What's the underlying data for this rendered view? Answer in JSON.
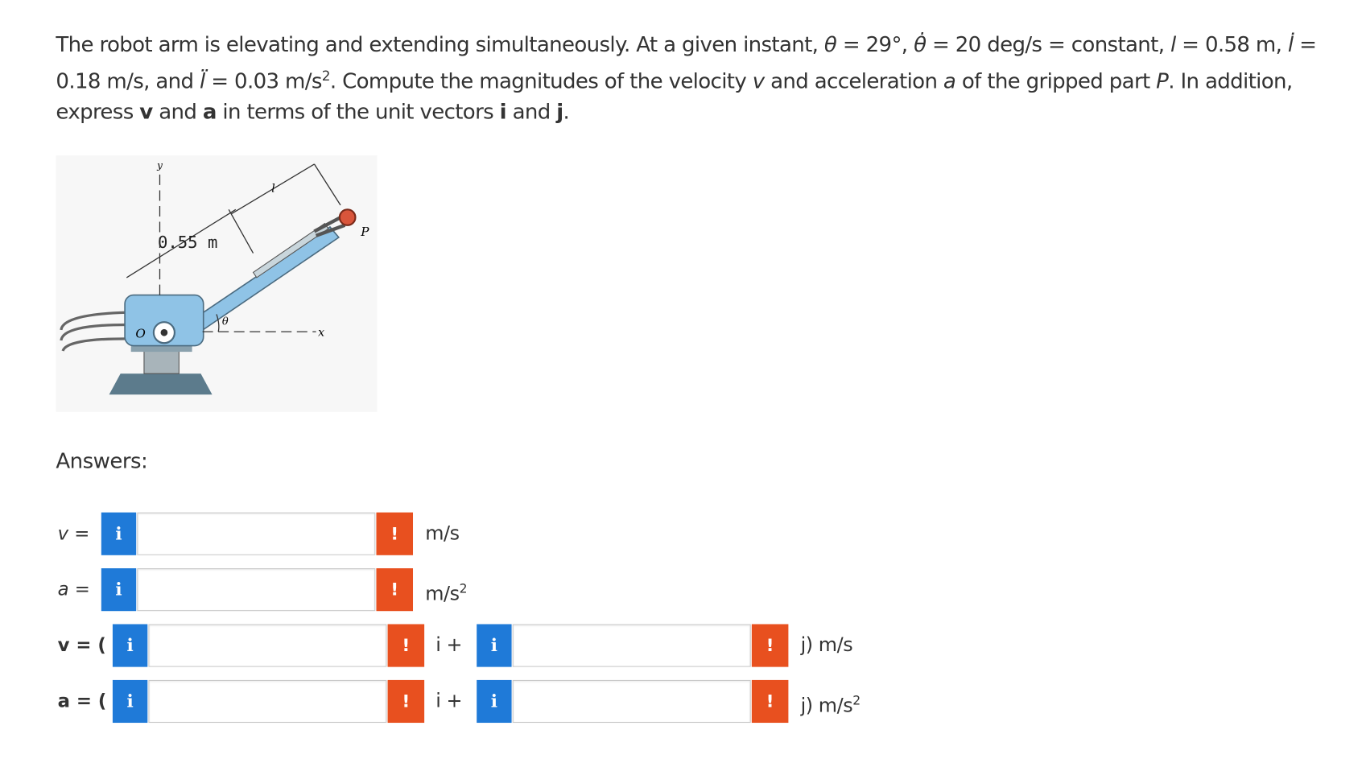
{
  "problem": {
    "segments": [
      "The robot arm is elevating and extending simultaneously. At a given instant, ",
      "θ",
      " = 29°, ",
      "θ̇",
      " = 20 deg/s = constant, ",
      "l",
      " = 0.58 m, ",
      "l̇",
      " = 0.18 m/s, and ",
      "l̈",
      " = 0.03 m/s",
      "2",
      ". Compute the magnitudes of the velocity ",
      "v",
      " and acceleration ",
      "a",
      " of the gripped part ",
      "P",
      ". In addition, express ",
      "v",
      " and ",
      "a",
      " in terms of the unit vectors ",
      "i",
      " and ",
      "j",
      "."
    ]
  },
  "figure": {
    "labels": {
      "y": "y",
      "dimension": "0.55 m",
      "l": "l",
      "P": "P",
      "O": "O",
      "theta": "θ",
      "x": "x"
    }
  },
  "answers": {
    "title": "Answers:",
    "info_icon": "i",
    "error_icon": "!",
    "rows": [
      {
        "label": "v =",
        "unit": "m/s"
      },
      {
        "label": "a =",
        "unit": "m/s",
        "unit_exp": "2"
      },
      {
        "label": "v = (",
        "mid": "i +",
        "unit": "j) m/s"
      },
      {
        "label": "a = (",
        "mid": "i +",
        "unit": "j) m/s",
        "unit_exp": "2"
      }
    ]
  }
}
